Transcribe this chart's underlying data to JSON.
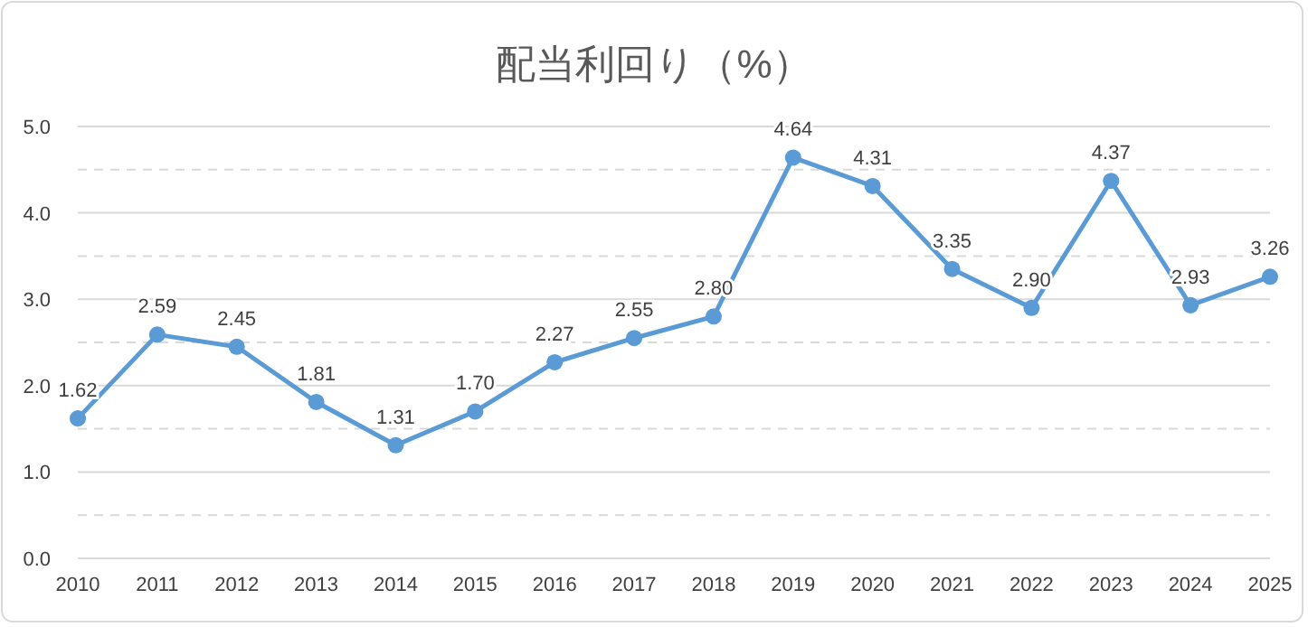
{
  "chart_data": {
    "type": "line",
    "title": "配当利回り（%）",
    "categories": [
      "2010",
      "2011",
      "2012",
      "2013",
      "2014",
      "2015",
      "2016",
      "2017",
      "2018",
      "2019",
      "2020",
      "2021",
      "2022",
      "2023",
      "2024",
      "2025"
    ],
    "series": [
      {
        "color": "#5b9bd5",
        "values": [
          1.62,
          2.59,
          2.45,
          1.81,
          1.31,
          1.7,
          2.27,
          2.55,
          2.8,
          4.64,
          4.31,
          3.35,
          2.9,
          4.37,
          2.93,
          3.26
        ],
        "value_labels": [
          "1.62",
          "2.59",
          "2.45",
          "1.81",
          "1.31",
          "1.70",
          "2.27",
          "2.55",
          "2.80",
          "4.64",
          "4.31",
          "3.35",
          "2.90",
          "4.37",
          "2.93",
          "3.26"
        ]
      }
    ],
    "ylim": [
      0,
      5
    ],
    "yticks": [
      {
        "value": 0,
        "label": "0.0"
      },
      {
        "value": 0.5,
        "label": null
      },
      {
        "value": 1,
        "label": "1.0"
      },
      {
        "value": 1.5,
        "label": null
      },
      {
        "value": 2,
        "label": "2.0"
      },
      {
        "value": 2.5,
        "label": null
      },
      {
        "value": 3,
        "label": "3.0"
      },
      {
        "value": 3.5,
        "label": null
      },
      {
        "value": 4,
        "label": "4.0"
      },
      {
        "value": 4.5,
        "label": null
      },
      {
        "value": 5,
        "label": "5.0"
      }
    ],
    "grid": true,
    "marker": "circle",
    "line_style": "solid"
  }
}
